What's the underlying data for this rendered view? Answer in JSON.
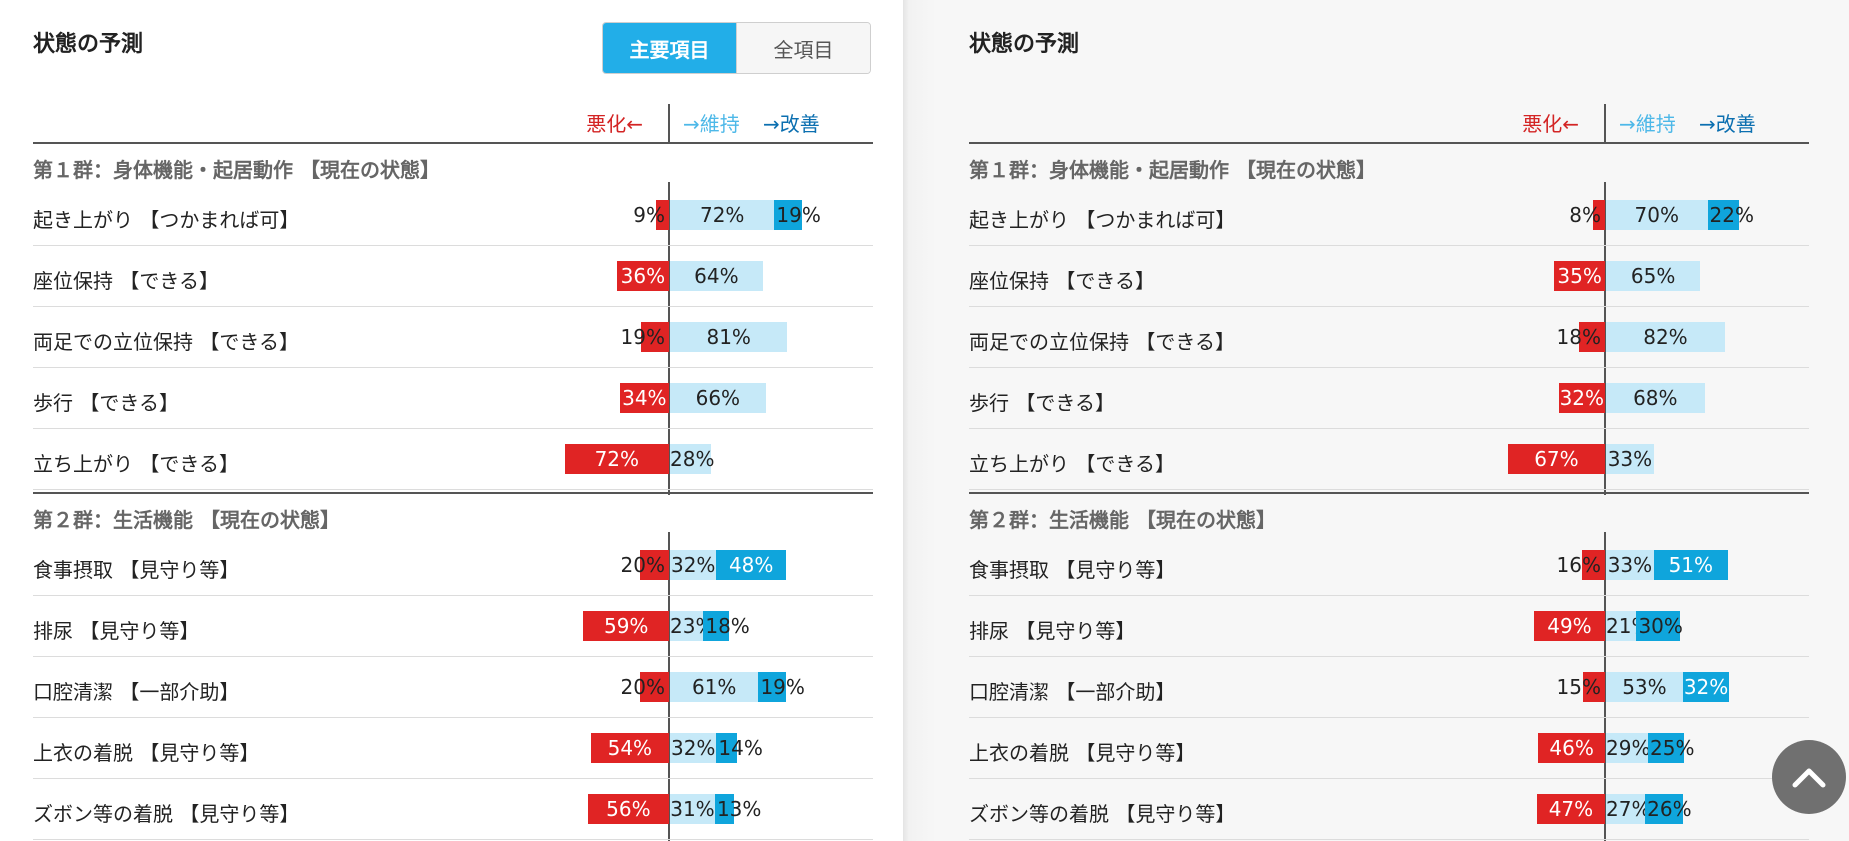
{
  "title": "状態の予測",
  "toggle": {
    "main": "主要項目",
    "all": "全項目"
  },
  "legend": {
    "worse": "悪化←",
    "maintain": "→維持",
    "improve": "→改善"
  },
  "colors": {
    "worse": "#e02424",
    "maintain": "#c6e9f8",
    "improve": "#0fa5dc",
    "accent": "#22aee8"
  },
  "icons": {
    "scroll_top": "chevron-up-icon"
  },
  "panels": [
    {
      "groups": [
        {
          "header": "第１群：身体機能・起居動作 【現在の状態】",
          "items": [
            {
              "label": "起き上がり 【つかまれば可】",
              "worse": 9,
              "maintain": 72,
              "improve": 19,
              "worse_text": "9%",
              "maintain_text": "72%",
              "improve_text": "19%"
            },
            {
              "label": "座位保持 【できる】",
              "worse": 36,
              "maintain": 64,
              "improve": 0,
              "worse_text": "36%",
              "maintain_text": "64%",
              "improve_text": ""
            },
            {
              "label": "両足での立位保持 【できる】",
              "worse": 19,
              "maintain": 81,
              "improve": 0,
              "worse_text": "19%",
              "maintain_text": "81%",
              "improve_text": ""
            },
            {
              "label": "歩行 【できる】",
              "worse": 34,
              "maintain": 66,
              "improve": 0,
              "worse_text": "34%",
              "maintain_text": "66%",
              "improve_text": ""
            },
            {
              "label": "立ち上がり 【できる】",
              "worse": 72,
              "maintain": 28,
              "improve": 0,
              "worse_text": "72%",
              "maintain_text": "28%",
              "improve_text": ""
            }
          ]
        },
        {
          "header": "第２群：生活機能 【現在の状態】",
          "items": [
            {
              "label": "食事摂取 【見守り等】",
              "worse": 20,
              "maintain": 32,
              "improve": 48,
              "worse_text": "20%",
              "maintain_text": "32%",
              "improve_text": "48%"
            },
            {
              "label": "排尿 【見守り等】",
              "worse": 59,
              "maintain": 23,
              "improve": 18,
              "worse_text": "59%",
              "maintain_text": "23%",
              "improve_text": "18%"
            },
            {
              "label": "口腔清潔 【一部介助】",
              "worse": 20,
              "maintain": 61,
              "improve": 19,
              "worse_text": "20%",
              "maintain_text": "61%",
              "improve_text": "19%"
            },
            {
              "label": "上衣の着脱 【見守り等】",
              "worse": 54,
              "maintain": 32,
              "improve": 14,
              "worse_text": "54%",
              "maintain_text": "32%",
              "improve_text": "14%"
            },
            {
              "label": "ズボン等の着脱 【見守り等】",
              "worse": 56,
              "maintain": 31,
              "improve": 13,
              "worse_text": "56%",
              "maintain_text": "31%",
              "improve_text": "13%"
            }
          ]
        }
      ]
    },
    {
      "groups": [
        {
          "header": "第１群：身体機能・起居動作 【現在の状態】",
          "items": [
            {
              "label": "起き上がり 【つかまれば可】",
              "worse": 8,
              "maintain": 70,
              "improve": 22,
              "worse_text": "8%",
              "maintain_text": "70%",
              "improve_text": "22%"
            },
            {
              "label": "座位保持 【できる】",
              "worse": 35,
              "maintain": 65,
              "improve": 0,
              "worse_text": "35%",
              "maintain_text": "65%",
              "improve_text": ""
            },
            {
              "label": "両足での立位保持 【できる】",
              "worse": 18,
              "maintain": 82,
              "improve": 0,
              "worse_text": "18%",
              "maintain_text": "82%",
              "improve_text": ""
            },
            {
              "label": "歩行 【できる】",
              "worse": 32,
              "maintain": 68,
              "improve": 0,
              "worse_text": "32%",
              "maintain_text": "68%",
              "improve_text": ""
            },
            {
              "label": "立ち上がり 【できる】",
              "worse": 67,
              "maintain": 33,
              "improve": 0,
              "worse_text": "67%",
              "maintain_text": "33%",
              "improve_text": ""
            }
          ]
        },
        {
          "header": "第２群：生活機能 【現在の状態】",
          "items": [
            {
              "label": "食事摂取 【見守り等】",
              "worse": 16,
              "maintain": 33,
              "improve": 51,
              "worse_text": "16%",
              "maintain_text": "33%",
              "improve_text": "51%"
            },
            {
              "label": "排尿 【見守り等】",
              "worse": 49,
              "maintain": 21,
              "improve": 30,
              "worse_text": "49%",
              "maintain_text": "21%",
              "improve_text": "30%"
            },
            {
              "label": "口腔清潔 【一部介助】",
              "worse": 15,
              "maintain": 53,
              "improve": 32,
              "worse_text": "15%",
              "maintain_text": "53%",
              "improve_text": "32%"
            },
            {
              "label": "上衣の着脱 【見守り等】",
              "worse": 46,
              "maintain": 29,
              "improve": 25,
              "worse_text": "46%",
              "maintain_text": "29%",
              "improve_text": "25%"
            },
            {
              "label": "ズボン等の着脱 【見守り等】",
              "worse": 47,
              "maintain": 27,
              "improve": 26,
              "worse_text": "47%",
              "maintain_text": "27%",
              "improve_text": "26%"
            }
          ]
        }
      ]
    }
  ]
}
